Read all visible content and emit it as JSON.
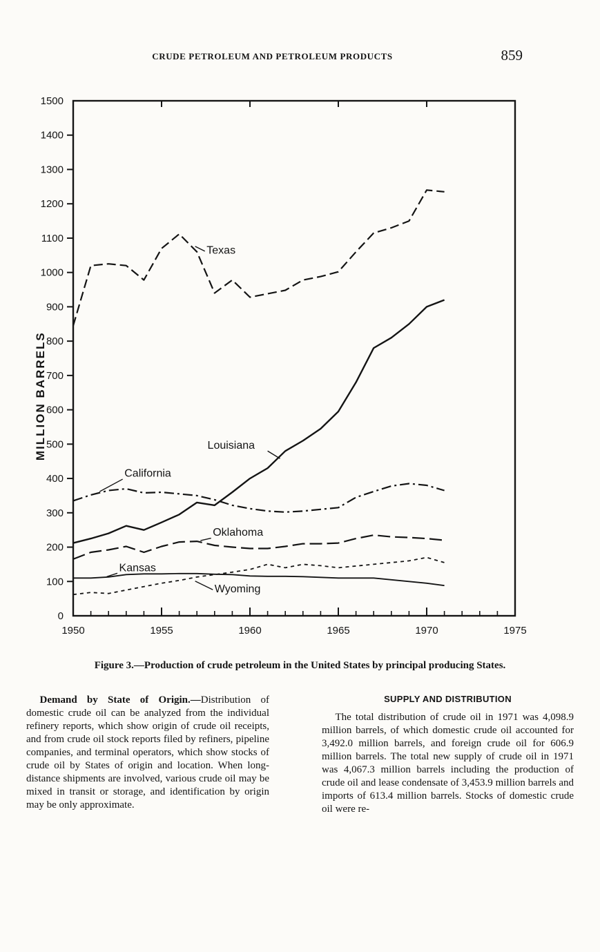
{
  "page": {
    "header": "CRUDE PETROLEUM AND PETROLEUM PRODUCTS",
    "page_number": "859",
    "caption": "Figure 3.—Production of crude petroleum in the United States by principal producing States."
  },
  "left_column": {
    "lead": "Demand by State of Origin.—",
    "body": "Distribution of domestic crude oil can be analyzed from the individual refinery reports, which show origin of crude oil receipts, and from crude oil stock reports filed by refiners, pipeline companies, and terminal operators, which show stocks of crude oil by States of origin and location. When long-distance shipments are involved, various crude oil may be mixed in transit or storage, and identification by origin may be only approximate."
  },
  "right_column": {
    "heading": "SUPPLY AND DISTRIBUTION",
    "body": "The total distribution of crude oil in 1971 was 4,098.9 million barrels, of which domestic crude oil accounted for 3,492.0 million barrels, and foreign crude oil for 606.9 million barrels. The total new supply of crude oil in 1971 was 4,067.3 million barrels including the production of crude oil and lease condensate of 3,453.9 million barrels and imports of 613.4 million barrels. Stocks of domestic crude oil were re-"
  },
  "chart_data": {
    "type": "line",
    "title": "Production of crude petroleum in the United States by principal producing States",
    "xlabel": "",
    "ylabel": "MILLION BARRELS",
    "xlim": [
      1950,
      1975
    ],
    "ylim": [
      0,
      1500
    ],
    "ytick_step": 100,
    "xticks": [
      1950,
      1955,
      1960,
      1965,
      1970,
      1975
    ],
    "grid": false,
    "legend_position": "inline-labels",
    "x": [
      1950,
      1951,
      1952,
      1953,
      1954,
      1955,
      1956,
      1957,
      1958,
      1959,
      1960,
      1961,
      1962,
      1963,
      1964,
      1965,
      1966,
      1967,
      1968,
      1969,
      1970,
      1971
    ],
    "series": [
      {
        "name": "Texas",
        "line_style": "dashed",
        "width": 2.2,
        "values": [
          845,
          1020,
          1025,
          1020,
          978,
          1070,
          1112,
          1060,
          940,
          978,
          928,
          938,
          948,
          978,
          988,
          1002,
          1060,
          1115,
          1130,
          1150,
          1240,
          1235
        ]
      },
      {
        "name": "Louisiana",
        "line_style": "solid",
        "width": 2.4,
        "values": [
          212,
          225,
          240,
          262,
          250,
          272,
          295,
          330,
          322,
          360,
          400,
          430,
          480,
          510,
          545,
          595,
          680,
          780,
          810,
          850,
          900,
          920
        ]
      },
      {
        "name": "California",
        "line_style": "dash-dot",
        "width": 2.2,
        "values": [
          335,
          352,
          365,
          370,
          358,
          360,
          355,
          350,
          338,
          322,
          312,
          305,
          302,
          305,
          310,
          315,
          345,
          362,
          378,
          385,
          380,
          365
        ]
      },
      {
        "name": "Oklahoma",
        "line_style": "long-dash",
        "width": 2.2,
        "values": [
          165,
          185,
          192,
          202,
          185,
          202,
          215,
          217,
          205,
          200,
          196,
          196,
          202,
          210,
          210,
          212,
          225,
          235,
          230,
          228,
          225,
          220
        ]
      },
      {
        "name": "Kansas",
        "line_style": "solid",
        "width": 1.8,
        "values": [
          110,
          110,
          113,
          120,
          122,
          122,
          123,
          123,
          121,
          120,
          116,
          115,
          115,
          114,
          112,
          110,
          110,
          110,
          105,
          100,
          95,
          88
        ]
      },
      {
        "name": "Wyoming",
        "line_style": "short-dash",
        "width": 1.8,
        "values": [
          62,
          68,
          65,
          75,
          85,
          95,
          103,
          113,
          120,
          127,
          135,
          150,
          140,
          150,
          146,
          140,
          145,
          150,
          155,
          160,
          170,
          155
        ]
      }
    ],
    "labels": [
      {
        "text": "Texas",
        "x": 1957.55,
        "y": 1055,
        "leader": [
          1957.45,
          1062,
          1956.9,
          1076
        ]
      },
      {
        "text": "Louisiana",
        "x": 1957.6,
        "y": 487,
        "leader": [
          1961.0,
          480,
          1961.7,
          458
        ]
      },
      {
        "text": "California",
        "x": 1952.9,
        "y": 405,
        "leader": [
          1952.8,
          398,
          1951.5,
          362
        ]
      },
      {
        "text": "Oklahoma",
        "x": 1957.9,
        "y": 233,
        "leader": [
          1957.8,
          226,
          1957.2,
          219
        ]
      },
      {
        "text": "Kansas",
        "x": 1952.6,
        "y": 130,
        "leader": [
          1952.5,
          124,
          1951.9,
          114
        ]
      },
      {
        "text": "Wyoming",
        "x": 1958.0,
        "y": 68,
        "leader": [
          1957.9,
          76,
          1956.9,
          101
        ]
      }
    ]
  }
}
